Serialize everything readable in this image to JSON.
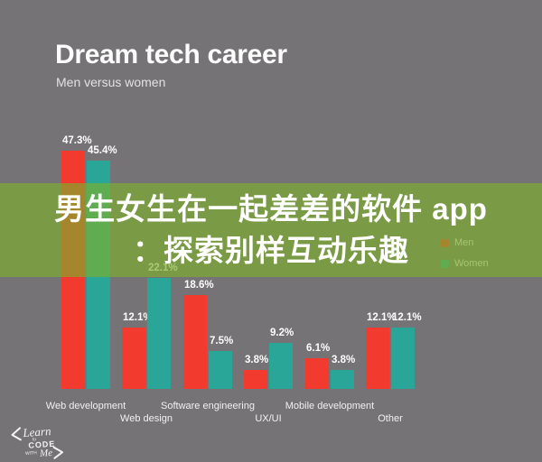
{
  "colors": {
    "background": "#757375",
    "men": "#f23a2e",
    "women": "#2aa698",
    "overlay_rgba": "rgba(125,175,44,0.66)",
    "text": "#ffffff"
  },
  "header": {
    "title": "Dream tech career",
    "subtitle": "Men versus women"
  },
  "banner": {
    "line1": "男生女生在一起差差的软件 app",
    "line2": "：探索别样互动乐趣"
  },
  "legend": {
    "position": "right",
    "men_label": "Men",
    "women_label": "Women",
    "men_color": "#f23a2e",
    "women_color": "#2aa698"
  },
  "chart_data": {
    "type": "bar",
    "title": "Dream tech career",
    "subtitle": "Men versus women",
    "categories": [
      "Web development",
      "Web design",
      "Software engineering",
      "UX/UI",
      "Mobile development",
      "Other"
    ],
    "series": [
      {
        "name": "Men",
        "color": "#f23a2e",
        "values": [
          47.3,
          12.1,
          18.6,
          3.8,
          6.1,
          12.1
        ]
      },
      {
        "name": "Women",
        "color": "#2aa698",
        "values": [
          45.4,
          22.1,
          7.5,
          9.2,
          3.8,
          12.1
        ]
      }
    ],
    "value_suffix": "%",
    "ylim": [
      0,
      50
    ],
    "gridlines": false,
    "legend_position": "right",
    "xlabel": "",
    "ylabel": ""
  },
  "watermark": {
    "bracket_left": "<",
    "word_learn": "Learn",
    "word_to": "to",
    "word_code": "CODE",
    "word_with": "WITH",
    "word_me": "Me",
    "bracket_right": ">"
  }
}
